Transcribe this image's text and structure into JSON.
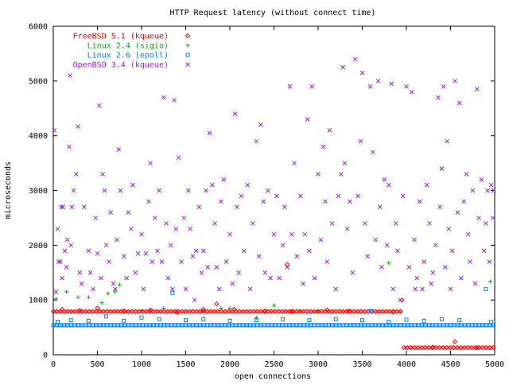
{
  "chart_data": {
    "type": "scatter",
    "title": "HTTP Request latency (without connect time)",
    "xlabel": "open connections",
    "ylabel": "microseconds",
    "xlim": [
      0,
      5000
    ],
    "ylim": [
      0,
      6000
    ],
    "xticks": [
      "0",
      "500",
      "1000",
      "1500",
      "2000",
      "2500",
      "3000",
      "3500",
      "4000",
      "4500",
      "5000"
    ],
    "yticks": [
      "0",
      "1000",
      "2000",
      "3000",
      "4000",
      "5000",
      "6000"
    ],
    "grid": false,
    "legend_position": "top-left",
    "series": [
      {
        "name": "FreeBSD 5.1 (kqueue)",
        "marker": "diamond",
        "color": "#ff0000",
        "baseline": [
          {
            "x_start": 0,
            "x_end": 3950,
            "y": 790
          },
          {
            "x_start": 3970,
            "x_end": 5000,
            "y": 130
          }
        ],
        "points": [
          [
            100,
            830
          ],
          [
            300,
            810
          ],
          [
            500,
            850
          ],
          [
            800,
            800
          ],
          [
            1100,
            820
          ],
          [
            1400,
            780
          ],
          [
            1700,
            830
          ],
          [
            1850,
            930
          ],
          [
            2050,
            830
          ],
          [
            2400,
            800
          ],
          [
            2650,
            1650
          ],
          [
            2700,
            790
          ],
          [
            3100,
            820
          ],
          [
            3350,
            800
          ],
          [
            3850,
            780
          ],
          [
            3950,
            1000
          ],
          [
            4050,
            130
          ],
          [
            4300,
            140
          ],
          [
            4550,
            240
          ],
          [
            4800,
            130
          ]
        ]
      },
      {
        "name": "Linux 2.4 (sigio)",
        "marker": "plus",
        "color": "#00b000",
        "points": [
          [
            30,
            1020
          ],
          [
            150,
            1150
          ],
          [
            280,
            1050
          ],
          [
            400,
            1050
          ],
          [
            550,
            950
          ],
          [
            620,
            1120
          ],
          [
            700,
            1150
          ],
          [
            750,
            1280
          ],
          [
            1000,
            800
          ],
          [
            1250,
            850
          ],
          [
            1700,
            800
          ],
          [
            1900,
            850
          ],
          [
            2000,
            850
          ],
          [
            2300,
            680
          ],
          [
            2500,
            900
          ],
          [
            2800,
            800
          ],
          [
            3000,
            800
          ],
          [
            3800,
            1680
          ],
          [
            4950,
            1340
          ]
        ]
      },
      {
        "name": "Linux 2.6 (epoll)",
        "marker": "square",
        "color": "#0080ff",
        "baseline": [
          {
            "x_start": 0,
            "x_end": 5000,
            "y": 540
          }
        ],
        "points": [
          [
            50,
            600
          ],
          [
            200,
            630
          ],
          [
            400,
            620
          ],
          [
            600,
            700
          ],
          [
            800,
            620
          ],
          [
            1000,
            680
          ],
          [
            1200,
            650
          ],
          [
            1350,
            1130
          ],
          [
            1500,
            630
          ],
          [
            1700,
            650
          ],
          [
            2000,
            620
          ],
          [
            2300,
            630
          ],
          [
            2600,
            650
          ],
          [
            2900,
            630
          ],
          [
            3200,
            650
          ],
          [
            3500,
            630
          ],
          [
            3600,
            800
          ],
          [
            3800,
            600
          ],
          [
            4000,
            640
          ],
          [
            4200,
            620
          ],
          [
            4400,
            650
          ],
          [
            4600,
            630
          ],
          [
            4900,
            1200
          ],
          [
            4960,
            600
          ]
        ]
      },
      {
        "name": "OpenBSD 3.4 (kqueue)",
        "marker": "x",
        "color": "#a020f0",
        "points": [
          [
            10,
            4100
          ],
          [
            30,
            1150
          ],
          [
            50,
            2300
          ],
          [
            60,
            1700
          ],
          [
            80,
            1700
          ],
          [
            90,
            2700
          ],
          [
            100,
            1400
          ],
          [
            110,
            2700
          ],
          [
            130,
            1900
          ],
          [
            150,
            1600
          ],
          [
            160,
            2100
          ],
          [
            180,
            3800
          ],
          [
            190,
            5100
          ],
          [
            200,
            2000
          ],
          [
            210,
            2700
          ],
          [
            230,
            3000
          ],
          [
            260,
            3300
          ],
          [
            280,
            4170
          ],
          [
            300,
            1500
          ],
          [
            320,
            1300
          ],
          [
            350,
            2700
          ],
          [
            400,
            1900
          ],
          [
            420,
            1500
          ],
          [
            450,
            1200
          ],
          [
            480,
            2500
          ],
          [
            500,
            1850
          ],
          [
            520,
            4550
          ],
          [
            540,
            1400
          ],
          [
            560,
            3300
          ],
          [
            580,
            3000
          ],
          [
            600,
            2000
          ],
          [
            630,
            1700
          ],
          [
            650,
            2600
          ],
          [
            680,
            1300
          ],
          [
            700,
            1200
          ],
          [
            720,
            2100
          ],
          [
            740,
            3750
          ],
          [
            760,
            3000
          ],
          [
            800,
            1800
          ],
          [
            830,
            1400
          ],
          [
            850,
            2600
          ],
          [
            880,
            2300
          ],
          [
            900,
            3100
          ],
          [
            930,
            1500
          ],
          [
            960,
            1850
          ],
          [
            1000,
            2200
          ],
          [
            1020,
            1200
          ],
          [
            1050,
            1850
          ],
          [
            1080,
            2800
          ],
          [
            1100,
            3500
          ],
          [
            1120,
            1700
          ],
          [
            1150,
            2500
          ],
          [
            1180,
            1900
          ],
          [
            1200,
            3000
          ],
          [
            1230,
            1700
          ],
          [
            1250,
            4700
          ],
          [
            1280,
            2400
          ],
          [
            1300,
            1400
          ],
          [
            1330,
            2000
          ],
          [
            1350,
            1200
          ],
          [
            1370,
            4650
          ],
          [
            1390,
            2300
          ],
          [
            1420,
            3600
          ],
          [
            1450,
            1700
          ],
          [
            1480,
            2500
          ],
          [
            1500,
            1200
          ],
          [
            1530,
            3000
          ],
          [
            1550,
            2300
          ],
          [
            1580,
            1800
          ],
          [
            1600,
            1000
          ],
          [
            1620,
            1900
          ],
          [
            1650,
            2700
          ],
          [
            1680,
            1500
          ],
          [
            1700,
            1900
          ],
          [
            1730,
            3000
          ],
          [
            1750,
            1600
          ],
          [
            1770,
            4050
          ],
          [
            1800,
            3100
          ],
          [
            1830,
            2400
          ],
          [
            1850,
            1600
          ],
          [
            1880,
            1200
          ],
          [
            1900,
            2800
          ],
          [
            1930,
            3200
          ],
          [
            1960,
            1700
          ],
          [
            2000,
            2200
          ],
          [
            2030,
            1300
          ],
          [
            2060,
            4400
          ],
          [
            2080,
            2700
          ],
          [
            2100,
            1500
          ],
          [
            2130,
            2900
          ],
          [
            2160,
            1900
          ],
          [
            2200,
            3100
          ],
          [
            2230,
            1200
          ],
          [
            2260,
            2400
          ],
          [
            2300,
            3900
          ],
          [
            2330,
            1800
          ],
          [
            2350,
            4200
          ],
          [
            2380,
            2800
          ],
          [
            2400,
            1500
          ],
          [
            2430,
            3000
          ],
          [
            2460,
            1400
          ],
          [
            2500,
            2200
          ],
          [
            2530,
            2900
          ],
          [
            2560,
            1400
          ],
          [
            2600,
            2000
          ],
          [
            2620,
            2700
          ],
          [
            2650,
            1600
          ],
          [
            2680,
            4900
          ],
          [
            2700,
            2200
          ],
          [
            2730,
            3500
          ],
          [
            2760,
            1800
          ],
          [
            2800,
            2900
          ],
          [
            2830,
            1300
          ],
          [
            2850,
            2200
          ],
          [
            2880,
            4300
          ],
          [
            2900,
            1900
          ],
          [
            2930,
            4900
          ],
          [
            2960,
            1400
          ],
          [
            3000,
            3300
          ],
          [
            3030,
            2100
          ],
          [
            3060,
            3800
          ],
          [
            3080,
            2800
          ],
          [
            3100,
            1700
          ],
          [
            3130,
            4100
          ],
          [
            3160,
            2400
          ],
          [
            3200,
            1200
          ],
          [
            3230,
            2900
          ],
          [
            3260,
            3300
          ],
          [
            3280,
            5250
          ],
          [
            3300,
            3500
          ],
          [
            3330,
            2300
          ],
          [
            3360,
            2800
          ],
          [
            3390,
            1500
          ],
          [
            3420,
            5400
          ],
          [
            3450,
            2900
          ],
          [
            3480,
            3900
          ],
          [
            3500,
            5150
          ],
          [
            3530,
            2400
          ],
          [
            3560,
            1800
          ],
          [
            3590,
            4900
          ],
          [
            3620,
            3700
          ],
          [
            3650,
            2100
          ],
          [
            3680,
            5000
          ],
          [
            3700,
            2700
          ],
          [
            3720,
            1600
          ],
          [
            3750,
            3200
          ],
          [
            3780,
            2000
          ],
          [
            3800,
            3100
          ],
          [
            3830,
            4950
          ],
          [
            3850,
            1200
          ],
          [
            3880,
            2400
          ],
          [
            3900,
            1900
          ],
          [
            3930,
            1000
          ],
          [
            3960,
            2900
          ],
          [
            4000,
            4900
          ],
          [
            4030,
            1600
          ],
          [
            4060,
            4800
          ],
          [
            4090,
            2100
          ],
          [
            4100,
            1200
          ],
          [
            4120,
            1400
          ],
          [
            4150,
            2800
          ],
          [
            4180,
            1200
          ],
          [
            4200,
            1700
          ],
          [
            4230,
            3100
          ],
          [
            4260,
            2400
          ],
          [
            4280,
            1300
          ],
          [
            4300,
            1500
          ],
          [
            4330,
            2000
          ],
          [
            4360,
            4700
          ],
          [
            4380,
            2700
          ],
          [
            4400,
            3400
          ],
          [
            4420,
            4900
          ],
          [
            4440,
            1600
          ],
          [
            4460,
            3900
          ],
          [
            4480,
            2300
          ],
          [
            4500,
            1200
          ],
          [
            4520,
            1900
          ],
          [
            4550,
            5000
          ],
          [
            4580,
            2600
          ],
          [
            4600,
            4600
          ],
          [
            4620,
            1400
          ],
          [
            4650,
            2800
          ],
          [
            4680,
            3300
          ],
          [
            4700,
            2200
          ],
          [
            4720,
            1700
          ],
          [
            4750,
            3000
          ],
          [
            4780,
            1300
          ],
          [
            4800,
            4850
          ],
          [
            4820,
            2500
          ],
          [
            4850,
            3200
          ],
          [
            4880,
            1900
          ],
          [
            4900,
            2400
          ],
          [
            4920,
            3000
          ],
          [
            4940,
            1700
          ],
          [
            4960,
            3100
          ],
          [
            4980,
            2500
          ],
          [
            4990,
            3000
          ]
        ]
      }
    ]
  }
}
